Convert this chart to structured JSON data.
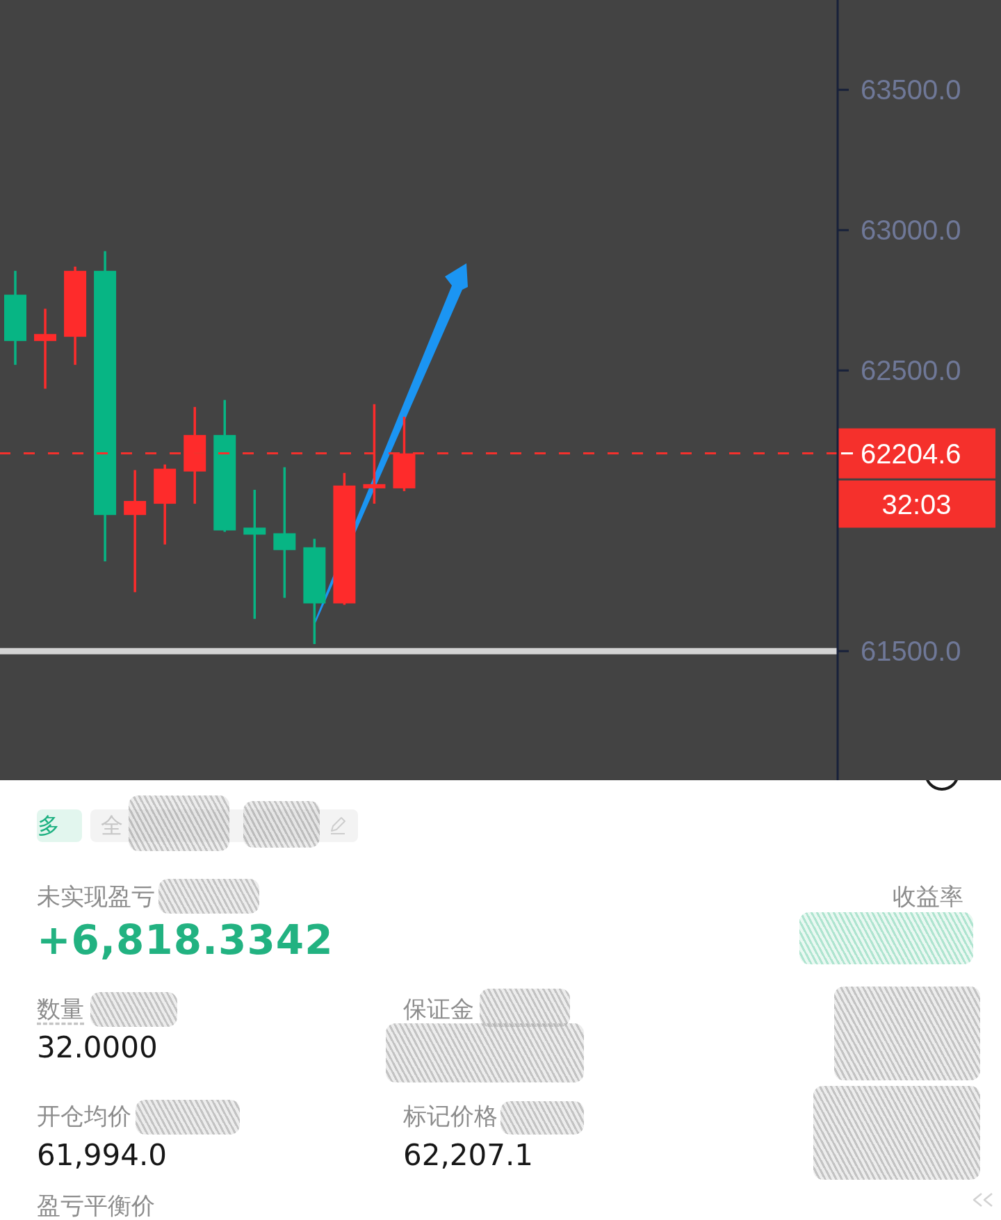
{
  "chart_data": [
    {
      "type": "candlestick",
      "categories": [
        null,
        null,
        null,
        null,
        null,
        null,
        null,
        null,
        null,
        null,
        null,
        null,
        null,
        null,
        null,
        null,
        null,
        null,
        null,
        null,
        null,
        null,
        null,
        null,
        null,
        null,
        null,
        null
      ],
      "ohlc": [
        [
          62770,
          62855,
          62520,
          62605
        ],
        [
          62605,
          62720,
          62435,
          62630
        ],
        [
          62620,
          62870,
          62520,
          62855
        ],
        [
          62855,
          62925,
          61820,
          61985
        ],
        [
          61985,
          62145,
          61710,
          62035
        ],
        [
          62025,
          62165,
          61880,
          62150
        ],
        [
          62140,
          62370,
          62025,
          62270
        ],
        [
          62270,
          62395,
          61925,
          61930
        ],
        [
          61940,
          62075,
          61615,
          61915
        ],
        [
          61920,
          62155,
          61690,
          61860
        ],
        [
          61870,
          61900,
          61525,
          61670
        ],
        [
          61670,
          62135,
          61665,
          62090
        ],
        [
          62080,
          62380,
          62025,
          62095
        ],
        [
          62080,
          62335,
          62070,
          62204.6
        ],
        null,
        null,
        null,
        null,
        null,
        null,
        null,
        null,
        null,
        null,
        null,
        null,
        null,
        null
      ],
      "colors": [
        "#07b584",
        "#fe2b2b",
        "#fe2b2b",
        "#07b584",
        "#fe2b2b",
        "#fe2b2b",
        "#fe2b2b",
        "#07b584",
        "#07b584",
        "#07b584",
        "#07b584",
        "#fe2b2b",
        "#fe2b2b",
        "#fe2b2b",
        null,
        null,
        null,
        null,
        null,
        null,
        null,
        null,
        null,
        null,
        null,
        null,
        null,
        null
      ],
      "ylim": [
        61040,
        63820
      ],
      "yticks": [
        {
          "value": 61500,
          "label": "61500.0"
        },
        {
          "value": 62500,
          "label": "62500.0"
        },
        {
          "value": 63000,
          "label": "63000.0"
        },
        {
          "value": 63500,
          "label": "63500.0"
        }
      ],
      "tick_labels": "y",
      "ref_lines": [
        {
          "axis": "y",
          "value": 62204.6,
          "label": "62204.6",
          "color": "#f5302c",
          "line_style": "dashed"
        },
        {
          "axis": "y",
          "value": 61500,
          "color": "#d4d4d4",
          "line_style": "solid"
        }
      ],
      "annotations": [
        "32:03"
      ]
    },
    {
      "type": "other",
      "annotations": [
        "多",
        "全",
        "未实现盈亏",
        "收益率",
        "+6,818.3342",
        "数量",
        "保证金",
        "32.0000",
        "开仓均价",
        "标记价格",
        "61,994.0",
        "62,207.1",
        "盈亏平衡价"
      ]
    }
  ]
}
